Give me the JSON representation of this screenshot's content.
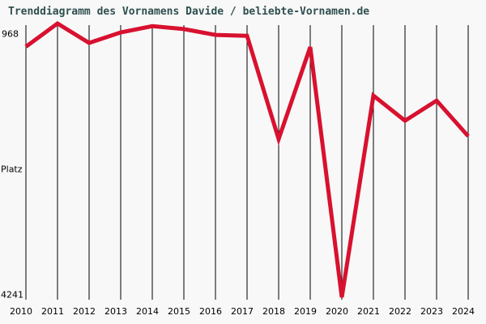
{
  "page": {
    "background_color": "#f8f8f8"
  },
  "chart_data": {
    "type": "line",
    "title": "Trenddiagramm des Vornamens Davide / beliebte-Vornamen.de",
    "title_color": "#2f4f4f",
    "x": [
      2010,
      2011,
      2012,
      2013,
      2014,
      2015,
      2016,
      2017,
      2018,
      2019,
      2020,
      2021,
      2022,
      2023,
      2024
    ],
    "series_name": "Davide",
    "values": [
      1245,
      968,
      1200,
      1075,
      1000,
      1035,
      1105,
      1115,
      2350,
      1250,
      4241,
      1830,
      2130,
      1890,
      2315
    ],
    "ylabel": "Platz",
    "ylim": [
      968,
      4241
    ],
    "y_axis": {
      "inverted": true,
      "top_tick_label": "968",
      "bottom_tick_label": "4241",
      "best_rank": 968,
      "worst_rank": 4241
    },
    "grid": "vertical-only",
    "legend": "none",
    "line_color": "#d8112f",
    "gridline_color": "#000000",
    "tick_label_color": "#000000"
  }
}
